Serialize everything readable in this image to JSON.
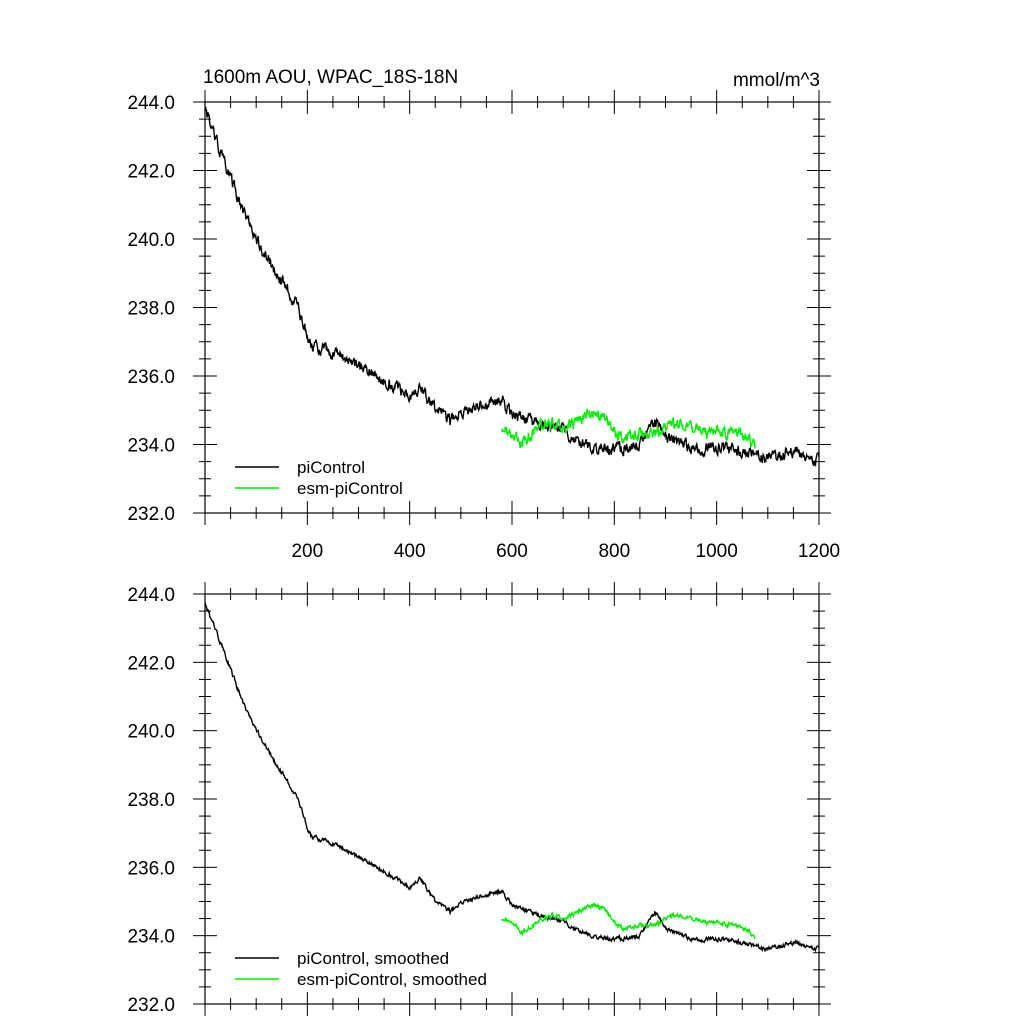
{
  "chart_data": [
    {
      "type": "line",
      "title": "1600m AOU, WPAC_18S-18N",
      "units": "mmol/m^3",
      "xlim": [
        0,
        1200
      ],
      "ylim": [
        232.0,
        244.0
      ],
      "x_ticks": [
        200,
        400,
        600,
        800,
        1000,
        1200
      ],
      "y_ticks": [
        "232.0",
        "234.0",
        "236.0",
        "238.0",
        "240.0",
        "242.0",
        "244.0"
      ],
      "legend": [
        "piControl",
        "esm-piControl"
      ],
      "series": [
        {
          "name": "piControl",
          "color": "#000000",
          "x": [
            0,
            20,
            50,
            80,
            110,
            140,
            170,
            190,
            200,
            210,
            250,
            300,
            350,
            400,
            420,
            450,
            480,
            500,
            550,
            580,
            600,
            650,
            700,
            750,
            800,
            850,
            880,
            900,
            950,
            1000,
            1050,
            1100,
            1150,
            1200
          ],
          "y": [
            243.8,
            243.0,
            241.8,
            240.6,
            239.8,
            239.0,
            238.3,
            237.7,
            237.1,
            236.9,
            236.7,
            236.3,
            235.9,
            235.4,
            235.7,
            235.0,
            234.7,
            235.0,
            235.2,
            235.3,
            234.9,
            234.6,
            234.4,
            233.9,
            233.9,
            234.0,
            234.7,
            234.2,
            233.9,
            233.9,
            233.8,
            233.6,
            233.8,
            233.5
          ],
          "noise": 0.14
        },
        {
          "name": "esm-piControl",
          "color": "#00ee00",
          "x": [
            580,
            600,
            620,
            650,
            680,
            700,
            730,
            760,
            780,
            800,
            820,
            850,
            880,
            900,
            920,
            950,
            980,
            1000,
            1030,
            1060,
            1075
          ],
          "y": [
            234.5,
            234.3,
            234.1,
            234.5,
            234.6,
            234.5,
            234.7,
            234.9,
            234.8,
            234.4,
            234.2,
            234.3,
            234.3,
            234.5,
            234.6,
            234.5,
            234.4,
            234.4,
            234.3,
            234.3,
            233.9
          ],
          "noise": 0.14
        }
      ]
    },
    {
      "type": "line",
      "xlim": [
        0,
        1200
      ],
      "ylim": [
        232.0,
        244.0
      ],
      "y_ticks": [
        "232.0",
        "234.0",
        "236.0",
        "238.0",
        "240.0",
        "242.0",
        "244.0"
      ],
      "legend": [
        "piControl, smoothed",
        "esm-piControl, smoothed"
      ],
      "series": [
        {
          "name": "piControl, smoothed",
          "color": "#000000",
          "x": [
            0,
            20,
            50,
            80,
            110,
            140,
            170,
            190,
            200,
            210,
            250,
            300,
            350,
            400,
            420,
            450,
            480,
            500,
            550,
            580,
            600,
            650,
            700,
            750,
            800,
            850,
            880,
            900,
            950,
            1000,
            1050,
            1100,
            1150,
            1200
          ],
          "y": [
            243.7,
            243.0,
            241.8,
            240.6,
            239.8,
            239.0,
            238.3,
            237.7,
            237.1,
            236.9,
            236.7,
            236.3,
            235.9,
            235.4,
            235.7,
            235.0,
            234.7,
            235.0,
            235.2,
            235.3,
            234.9,
            234.6,
            234.4,
            234.0,
            233.9,
            234.0,
            234.7,
            234.2,
            233.9,
            233.9,
            233.8,
            233.6,
            233.8,
            233.6
          ],
          "noise": 0.05
        },
        {
          "name": "esm-piControl, smoothed",
          "color": "#00ee00",
          "x": [
            580,
            600,
            620,
            650,
            680,
            700,
            730,
            760,
            780,
            800,
            820,
            850,
            880,
            900,
            920,
            950,
            980,
            1000,
            1030,
            1060,
            1075
          ],
          "y": [
            234.5,
            234.4,
            234.1,
            234.4,
            234.6,
            234.5,
            234.7,
            234.9,
            234.8,
            234.4,
            234.2,
            234.3,
            234.3,
            234.5,
            234.6,
            234.5,
            234.4,
            234.4,
            234.3,
            234.2,
            233.9
          ],
          "noise": 0.05
        }
      ]
    }
  ]
}
